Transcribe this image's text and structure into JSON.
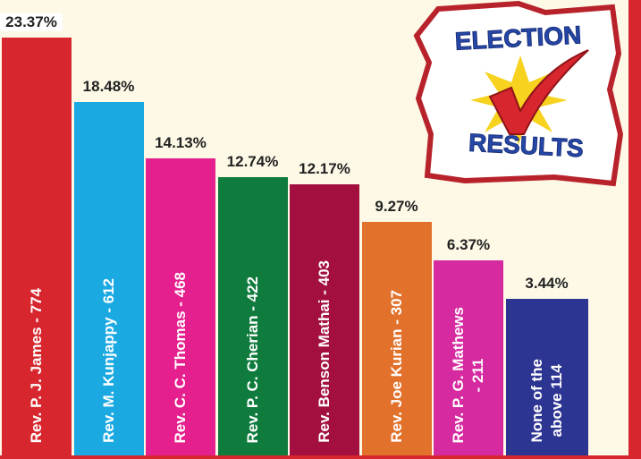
{
  "chart_data": {
    "type": "bar",
    "categories": [
      "Rev. P. J. James -  774",
      "Rev. M. Kunjappy - 612",
      "Rev. C. C. Thomas - 468",
      "Rev. P. C. Cherian - 422",
      "Rev. Benson Mathai - 403",
      "Rev. Joe Kurian - 307",
      "Rev. P. G. Mathews\n- 211",
      "None of the\nabove 114"
    ],
    "values": [
      23.37,
      18.48,
      14.13,
      12.74,
      12.17,
      9.27,
      6.37,
      3.44
    ],
    "value_labels": [
      "23.37%",
      "18.48%",
      "14.13%",
      "12.74%",
      "12.17%",
      "9.27%",
      "6.37%",
      "3.44%"
    ],
    "colors": [
      "#d7262e",
      "#1ba9e1",
      "#e51f8d",
      "#0f7b3d",
      "#a3103f",
      "#e2712b",
      "#d62aa0",
      "#2d3592"
    ]
  },
  "logo": {
    "top": "ELECTION",
    "bottom": "RESULTS"
  }
}
